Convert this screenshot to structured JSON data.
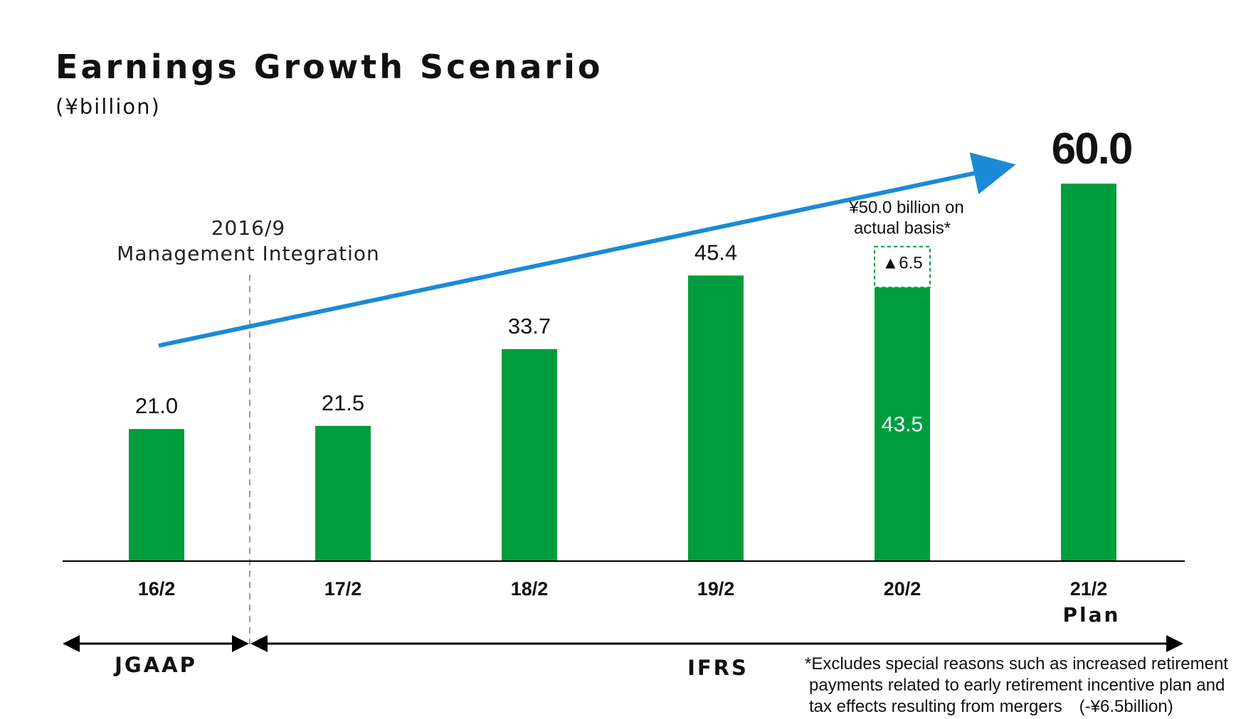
{
  "chart_data": {
    "type": "bar",
    "title": "Earnings Growth Scenario",
    "unit": "(¥billion)",
    "categories": [
      "16/2",
      "17/2",
      "18/2",
      "19/2",
      "20/2",
      "21/2"
    ],
    "values": [
      21.0,
      21.5,
      33.7,
      45.4,
      43.5,
      60.0
    ],
    "value_labels": [
      "21.0",
      "21.5",
      "33.7",
      "45.4",
      "43.5",
      "60.0"
    ],
    "category_sublabels": [
      "",
      "",
      "",
      "",
      "",
      "Plan"
    ],
    "ylim": [
      0,
      65
    ],
    "bar_color": "#009d3f",
    "trend_arrow_color": "#1a8bd5",
    "adjustment": {
      "category": "20/2",
      "base_value": 43.5,
      "adjustment_value": 6.5,
      "adjustment_label": "▲6.5",
      "actual_basis_line1": "¥50.0 billion on",
      "actual_basis_line2": "actual basis*"
    },
    "integration_annotation": {
      "line1": "2016/9",
      "line2": "Management Integration"
    },
    "accounting_standards": [
      {
        "name": "JGAAP",
        "categories": [
          "16/2"
        ]
      },
      {
        "name": "IFRS",
        "categories": [
          "17/2",
          "18/2",
          "19/2",
          "20/2",
          "21/2"
        ]
      }
    ],
    "footnote": {
      "line1": "*Excludes special reasons such as increased retirement",
      "line2": "payments related to early retirement incentive plan and",
      "line3": "tax effects resulting from mergers　(-¥6.5billion)"
    }
  }
}
